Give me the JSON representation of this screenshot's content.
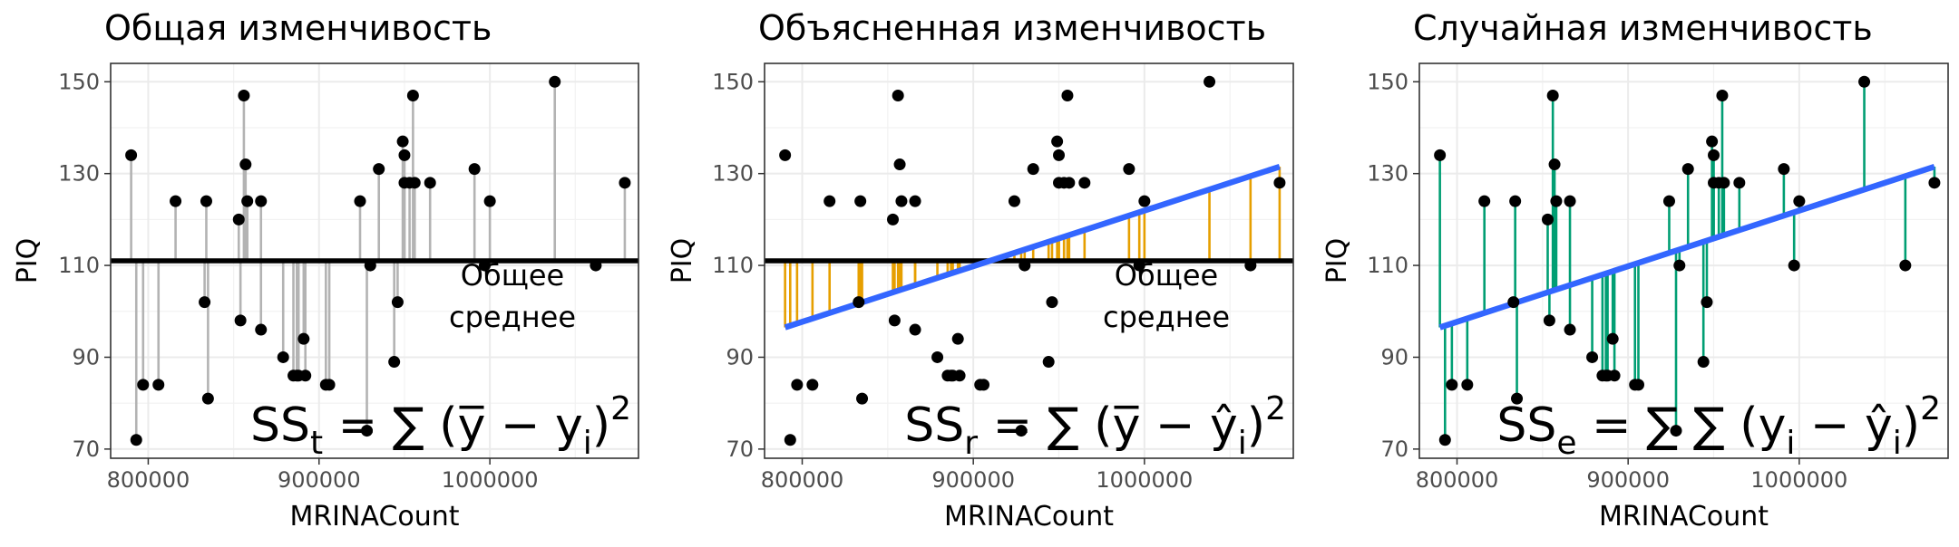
{
  "chart_data": [
    {
      "type": "scatter",
      "title": "Общая изменчивость",
      "xlabel": "MRINACount",
      "ylabel": "PIQ",
      "xticks": [
        800000,
        900000,
        1000000
      ],
      "yticks": [
        70,
        90,
        110,
        130,
        150
      ],
      "xlim": [
        778000,
        1087000
      ],
      "ylim": [
        68,
        154
      ],
      "mean_line": 111,
      "segments": "to_mean",
      "segment_color": "#b3b3b3",
      "annotation": [
        "Общее",
        "среднее"
      ],
      "formula": {
        "lhs": "SS",
        "lhs_sub": "t",
        "eq": " = ∑ (",
        "a": "y̅",
        "minus": " − ",
        "b": "y",
        "b_sub": "i",
        "close": ")",
        "power": "2"
      }
    },
    {
      "type": "scatter",
      "title": "Объясненная изменчивость",
      "xlabel": "MRINACount",
      "ylabel": "PIQ",
      "xticks": [
        800000,
        900000,
        1000000
      ],
      "yticks": [
        70,
        90,
        110,
        130,
        150
      ],
      "xlim": [
        778000,
        1087000
      ],
      "ylim": [
        68,
        154
      ],
      "mean_line": 111,
      "regression": {
        "x": [
          790000,
          1079000
        ],
        "y": [
          96.5,
          131.5
        ],
        "color": "#3366ff"
      },
      "segments": "mean_to_fit",
      "segment_color": "#e69f00",
      "annotation": [
        "Общее",
        "среднее"
      ],
      "formula": {
        "lhs": "SS",
        "lhs_sub": "r",
        "eq": " = ∑ (",
        "a": "y̅",
        "minus": " − ",
        "b": "ŷ",
        "b_sub": "i",
        "close": ")",
        "power": "2"
      }
    },
    {
      "type": "scatter",
      "title": "Случайная изменчивость",
      "xlabel": "MRINACount",
      "ylabel": "PIQ",
      "xticks": [
        800000,
        900000,
        1000000
      ],
      "yticks": [
        70,
        90,
        110,
        130,
        150
      ],
      "xlim": [
        778000,
        1087000
      ],
      "ylim": [
        68,
        154
      ],
      "regression": {
        "x": [
          790000,
          1079000
        ],
        "y": [
          96.5,
          131.5
        ],
        "color": "#3366ff"
      },
      "segments": "fit_to_point",
      "segment_color": "#009e73",
      "formula": {
        "lhs": "SS",
        "lhs_sub": "e",
        "eq": " = ∑ ∑ (",
        "a": "y",
        "a_sub": "i",
        "minus": " − ",
        "b": "ŷ",
        "b_sub": "i",
        "close": ")",
        "power": "2"
      }
    }
  ],
  "points": {
    "x": [
      790000,
      793000,
      797000,
      806000,
      816000,
      833000,
      834000,
      835000,
      853000,
      854000,
      856000,
      857000,
      858000,
      866000,
      866000,
      879000,
      885000,
      887000,
      888000,
      891000,
      892000,
      904000,
      906000,
      924000,
      928000,
      930000,
      935000,
      944000,
      946000,
      949000,
      950000,
      950000,
      953000,
      955000,
      956000,
      965000,
      991000,
      997000,
      1000000,
      1038000,
      1062000,
      1079000
    ],
    "y": [
      134,
      72,
      84,
      84,
      124,
      102,
      124,
      81,
      120,
      98,
      147,
      132,
      124,
      96,
      124,
      90,
      86,
      86,
      86,
      94,
      86,
      84,
      84,
      124,
      74,
      110,
      131,
      89,
      102,
      137,
      128,
      134,
      128,
      147,
      128,
      128,
      131,
      110,
      124,
      150,
      110,
      128
    ]
  }
}
